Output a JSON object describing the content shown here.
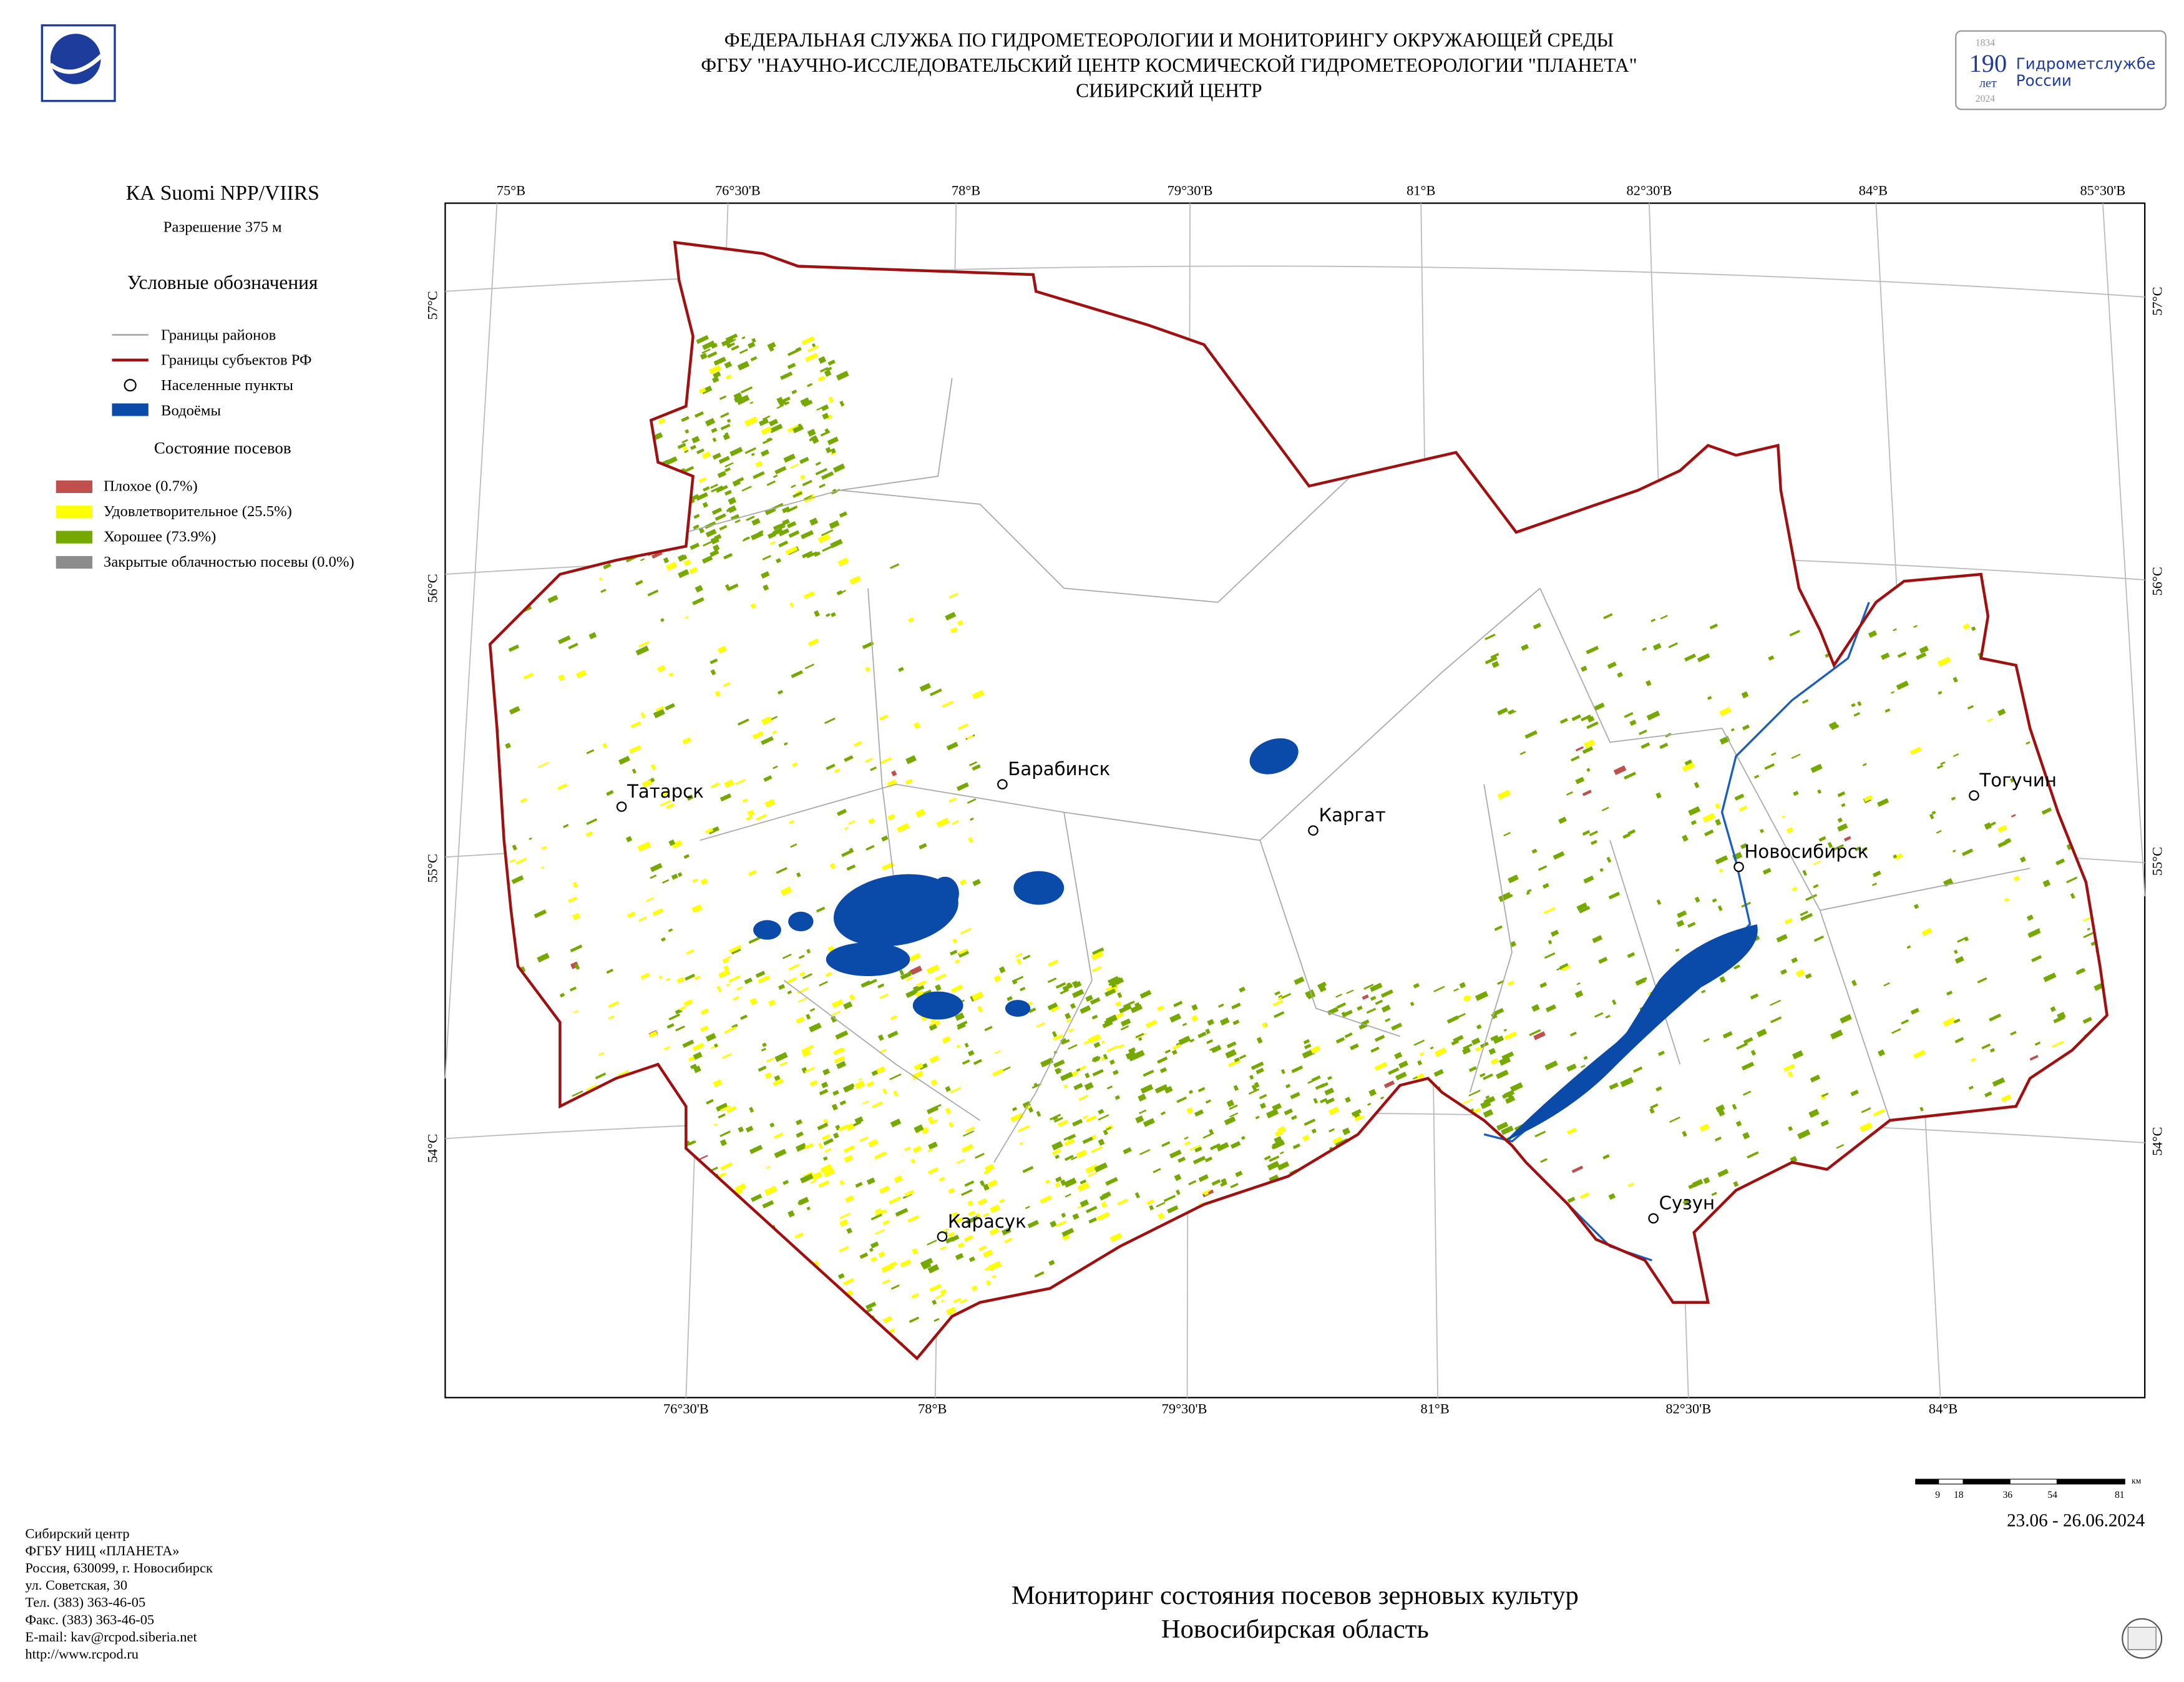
{
  "header": {
    "lines": [
      "ФЕДЕРАЛЬНАЯ СЛУЖБА ПО ГИДРОМЕТЕОРОЛОГИИ И МОНИТОРИНГУ ОКРУЖАЮЩЕЙ СРЕДЫ",
      "ФГБУ \"НАУЧНО-ИССЛЕДОВАТЕЛЬСКИЙ ЦЕНТР КОСМИЧЕСКОЙ ГИДРОМЕТЕОРОЛОГИИ \"ПЛАНЕТА\"",
      "СИБИРСКИЙ ЦЕНТР"
    ],
    "badge": {
      "year_start": "1834",
      "number": "190",
      "unit": "лет",
      "text1": "Гидрометслужбе",
      "text2": "России",
      "year_end": "2024"
    }
  },
  "sidebar": {
    "satellite": "КА Suomi NPP/VIIRS",
    "resolution": "Разрешение 375 м",
    "legend_title": "Условные обозначения",
    "legend": [
      "Границы районов",
      "Границы субъектов РФ",
      "Населенные пункты",
      "Водоёмы"
    ],
    "crop_title": "Состояние посевов",
    "crop_legend": [
      "Плохое (0.7%)",
      "Удовлетворительное (25.5%)",
      "Хорошее (73.9%)",
      "Закрытые облачностью посевы (0.0%)"
    ]
  },
  "map": {
    "top_lon": [
      "75°В",
      "76°30'В",
      "78°В",
      "79°30'В",
      "81°В",
      "82°30'В",
      "84°В",
      "85°30'В"
    ],
    "bottom_lon": [
      "76°30'В",
      "78°В",
      "79°30'В",
      "81°В",
      "82°30'В",
      "84°В"
    ],
    "left_lat": [
      "57°С",
      "56°С",
      "55°С",
      "54°С"
    ],
    "right_lat": [
      "57°С",
      "56°С",
      "55°С",
      "54°С"
    ],
    "cities": [
      "Татарск",
      "Барабинск",
      "Каргат",
      "Новосибирск",
      "Тогучин",
      "Карасук",
      "Сузун"
    ]
  },
  "scale": {
    "labels": [
      "9",
      "18",
      "36",
      "54",
      "81"
    ],
    "unit": "км"
  },
  "date": "23.06 - 26.06.2024",
  "footer": {
    "address": [
      "Сибирский центр",
      "ФГБУ НИЦ «ПЛАНЕТА»",
      "Россия, 630099, г. Новосибирск",
      "ул. Советская, 30",
      "Тел. (383) 363-46-05",
      "Факс. (383) 363-46-05",
      "E-mail: kav@rcpod.siberia.net",
      "http://www.rcpod.ru"
    ],
    "title": [
      "Мониторинг состояния посевов зерновых культур",
      "Новосибирская область"
    ]
  }
}
